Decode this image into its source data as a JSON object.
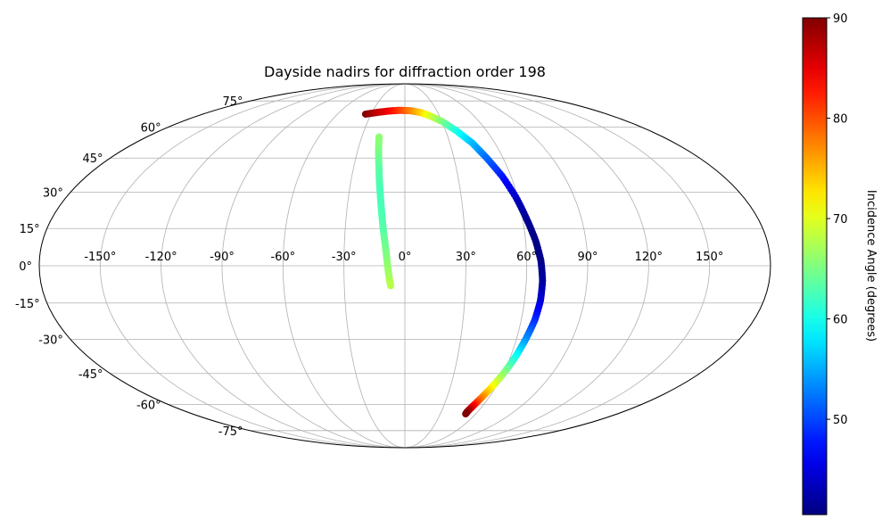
{
  "chart_data": {
    "type": "scatter",
    "projection": "mollweide",
    "title": "Dayside nadirs for diffraction order 198",
    "grid": true,
    "x_ticks": [
      "-150°",
      "-120°",
      "-90°",
      "-60°",
      "-30°",
      "0°",
      "30°",
      "60°",
      "90°",
      "120°",
      "150°"
    ],
    "y_ticks": [
      "-75°",
      "-60°",
      "-45°",
      "-30°",
      "-15°",
      "0°",
      "15°",
      "30°",
      "45°",
      "60°",
      "75°"
    ],
    "colorbar": {
      "label": "Incidence Angle (degrees)",
      "colormap": "jet",
      "range": [
        40.5,
        90
      ],
      "ticks": [
        "50",
        "60",
        "70",
        "80",
        "90"
      ]
    },
    "series": [
      {
        "points": [
          {
            "lon": -18.0,
            "lat": 55.0,
            "incidence": 66.0
          },
          {
            "lon": -17.0,
            "lat": 50.0,
            "incidence": 65.5
          },
          {
            "lon": -16.0,
            "lat": 45.0,
            "incidence": 64.5
          },
          {
            "lon": -15.0,
            "lat": 40.0,
            "incidence": 63.5
          },
          {
            "lon": -14.2,
            "lat": 35.0,
            "incidence": 63.0
          },
          {
            "lon": -13.3,
            "lat": 30.0,
            "incidence": 62.5
          },
          {
            "lon": -12.5,
            "lat": 25.0,
            "incidence": 62.5
          },
          {
            "lon": -11.7,
            "lat": 20.0,
            "incidence": 62.8
          },
          {
            "lon": -10.9,
            "lat": 15.0,
            "incidence": 63.2
          },
          {
            "lon": -10.0,
            "lat": 10.0,
            "incidence": 64.0
          },
          {
            "lon": -9.2,
            "lat": 5.0,
            "incidence": 65.0
          },
          {
            "lon": -8.5,
            "lat": 0.0,
            "incidence": 66.0
          },
          {
            "lon": -7.7,
            "lat": -5.0,
            "incidence": 67.0
          },
          {
            "lon": -7.0,
            "lat": -8.0,
            "incidence": 68.0
          }
        ]
      },
      {
        "points": [
          {
            "lon": -35.0,
            "lat": 67.0,
            "incidence": 90.0
          },
          {
            "lon": -25.0,
            "lat": 68.0,
            "incidence": 87.0
          },
          {
            "lon": -15.0,
            "lat": 68.8,
            "incidence": 84.5
          },
          {
            "lon": -5.0,
            "lat": 69.2,
            "incidence": 81.5
          },
          {
            "lon": 5.0,
            "lat": 69.0,
            "incidence": 78.0
          },
          {
            "lon": 15.0,
            "lat": 67.8,
            "incidence": 74.0
          },
          {
            "lon": 22.0,
            "lat": 66.0,
            "incidence": 70.0
          },
          {
            "lon": 30.0,
            "lat": 63.0,
            "incidence": 65.5
          },
          {
            "lon": 38.0,
            "lat": 58.0,
            "incidence": 60.5
          },
          {
            "lon": 45.0,
            "lat": 52.0,
            "incidence": 56.0
          },
          {
            "lon": 50.0,
            "lat": 45.0,
            "incidence": 52.0
          },
          {
            "lon": 55.0,
            "lat": 37.0,
            "incidence": 48.0
          },
          {
            "lon": 59.0,
            "lat": 28.0,
            "incidence": 44.0
          },
          {
            "lon": 62.0,
            "lat": 19.0,
            "incidence": 41.5
          },
          {
            "lon": 65.0,
            "lat": 10.0,
            "incidence": 40.8
          },
          {
            "lon": 67.0,
            "lat": 2.0,
            "incidence": 41.0
          },
          {
            "lon": 68.0,
            "lat": -6.0,
            "incidence": 42.0
          },
          {
            "lon": 68.0,
            "lat": -14.0,
            "incidence": 44.5
          },
          {
            "lon": 67.0,
            "lat": -22.0,
            "incidence": 48.5
          },
          {
            "lon": 65.0,
            "lat": -30.0,
            "incidence": 53.5
          },
          {
            "lon": 63.0,
            "lat": -37.0,
            "incidence": 59.0
          },
          {
            "lon": 61.0,
            "lat": -43.0,
            "incidence": 64.0
          },
          {
            "lon": 58.5,
            "lat": -49.0,
            "incidence": 69.0
          },
          {
            "lon": 56.0,
            "lat": -54.0,
            "incidence": 74.0
          },
          {
            "lon": 54.0,
            "lat": -58.0,
            "incidence": 79.0
          },
          {
            "lon": 52.5,
            "lat": -61.0,
            "incidence": 84.0
          },
          {
            "lon": 51.5,
            "lat": -63.5,
            "incidence": 88.0
          },
          {
            "lon": 51.5,
            "lat": -65.0,
            "incidence": 90.0
          }
        ]
      }
    ]
  }
}
